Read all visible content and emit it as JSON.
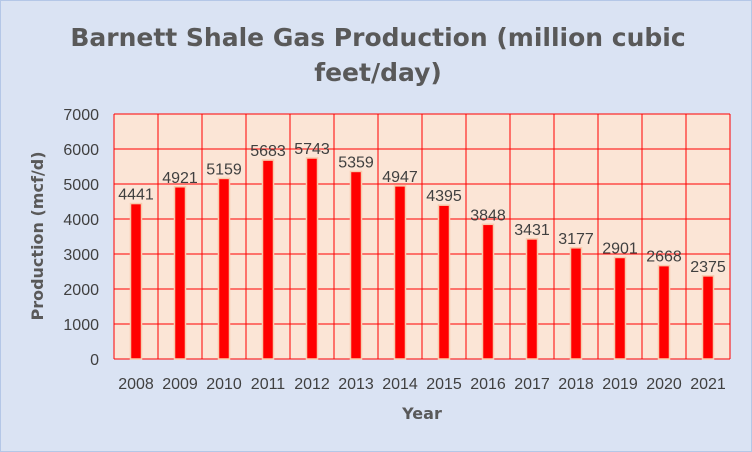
{
  "chart_data": {
    "type": "bar",
    "title_line1": "Barnett Shale Gas Production (million cubic",
    "title_line2": "feet/day)",
    "xlabel": "Year",
    "ylabel": "Production (mcf/d)",
    "categories": [
      "2008",
      "2009",
      "2010",
      "2011",
      "2012",
      "2013",
      "2014",
      "2015",
      "2016",
      "2017",
      "2018",
      "2019",
      "2020",
      "2021"
    ],
    "values": [
      4441,
      4921,
      5159,
      5683,
      5743,
      5359,
      4947,
      4395,
      3848,
      3431,
      3177,
      2901,
      2668,
      2375
    ],
    "ylim": [
      0,
      7000
    ],
    "yticks": [
      0,
      1000,
      2000,
      3000,
      4000,
      5000,
      6000,
      7000
    ],
    "grid": true,
    "data_labels": true,
    "legend": "none",
    "colors": {
      "bar": "#ff0000",
      "bar_outline": "#f8cbad",
      "plot_bg": "#fbe5d6",
      "grid": "#ff0000",
      "background": "#dae3f3"
    }
  }
}
